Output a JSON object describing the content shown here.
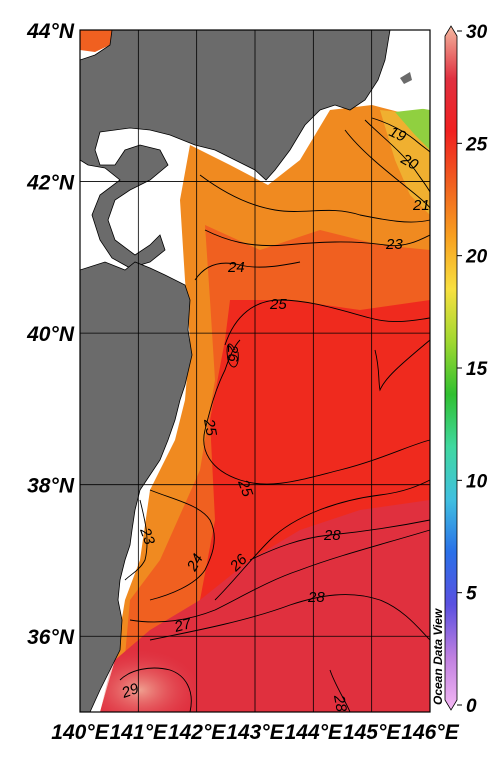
{
  "map": {
    "lat_labels": [
      "44°N",
      "42°N",
      "40°N",
      "38°N",
      "36°N"
    ],
    "lat_values": [
      44,
      42,
      40,
      38,
      36
    ],
    "lon_labels": [
      "140°E",
      "141°E",
      "142°E",
      "143°E",
      "144°E",
      "145°E",
      "146°E"
    ],
    "lon_values": [
      140,
      141,
      142,
      143,
      144,
      145,
      146
    ],
    "lat_range": [
      35,
      44
    ],
    "lon_range": [
      140,
      146
    ],
    "land_color": "#6b6b6b",
    "nodata_color": "#ffffff",
    "contour_labels": [
      "19",
      "20",
      "21",
      "23",
      "24",
      "25",
      "26",
      "25",
      "25",
      "23",
      "24",
      "26",
      "28",
      "28",
      "27",
      "29",
      "28"
    ],
    "watermark": "Ocean Data View"
  },
  "colorbar": {
    "ticks": [
      "0",
      "5",
      "10",
      "15",
      "20",
      "25",
      "30"
    ],
    "tick_values": [
      0,
      5,
      10,
      15,
      20,
      25,
      30
    ],
    "range": [
      0,
      30
    ],
    "colors": [
      "#f4b8f4",
      "#c080e0",
      "#5a50e0",
      "#2a70e8",
      "#40c0e0",
      "#40d8a0",
      "#30c030",
      "#a0d830",
      "#f8e040",
      "#f8a020",
      "#f06020",
      "#f02020",
      "#e03040",
      "#f4b8a0"
    ]
  }
}
